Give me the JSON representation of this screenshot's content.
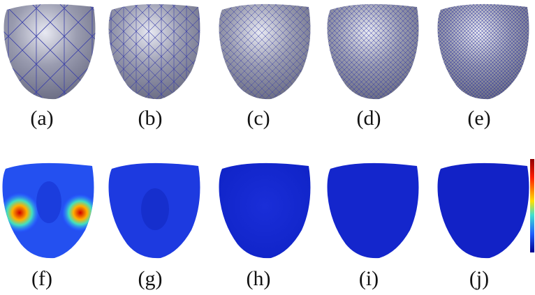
{
  "figure": {
    "labels": [
      "(a)",
      "(b)",
      "(c)",
      "(d)",
      "(e)",
      "(f)",
      "(g)",
      "(h)",
      "(i)",
      "(j)"
    ]
  }
}
